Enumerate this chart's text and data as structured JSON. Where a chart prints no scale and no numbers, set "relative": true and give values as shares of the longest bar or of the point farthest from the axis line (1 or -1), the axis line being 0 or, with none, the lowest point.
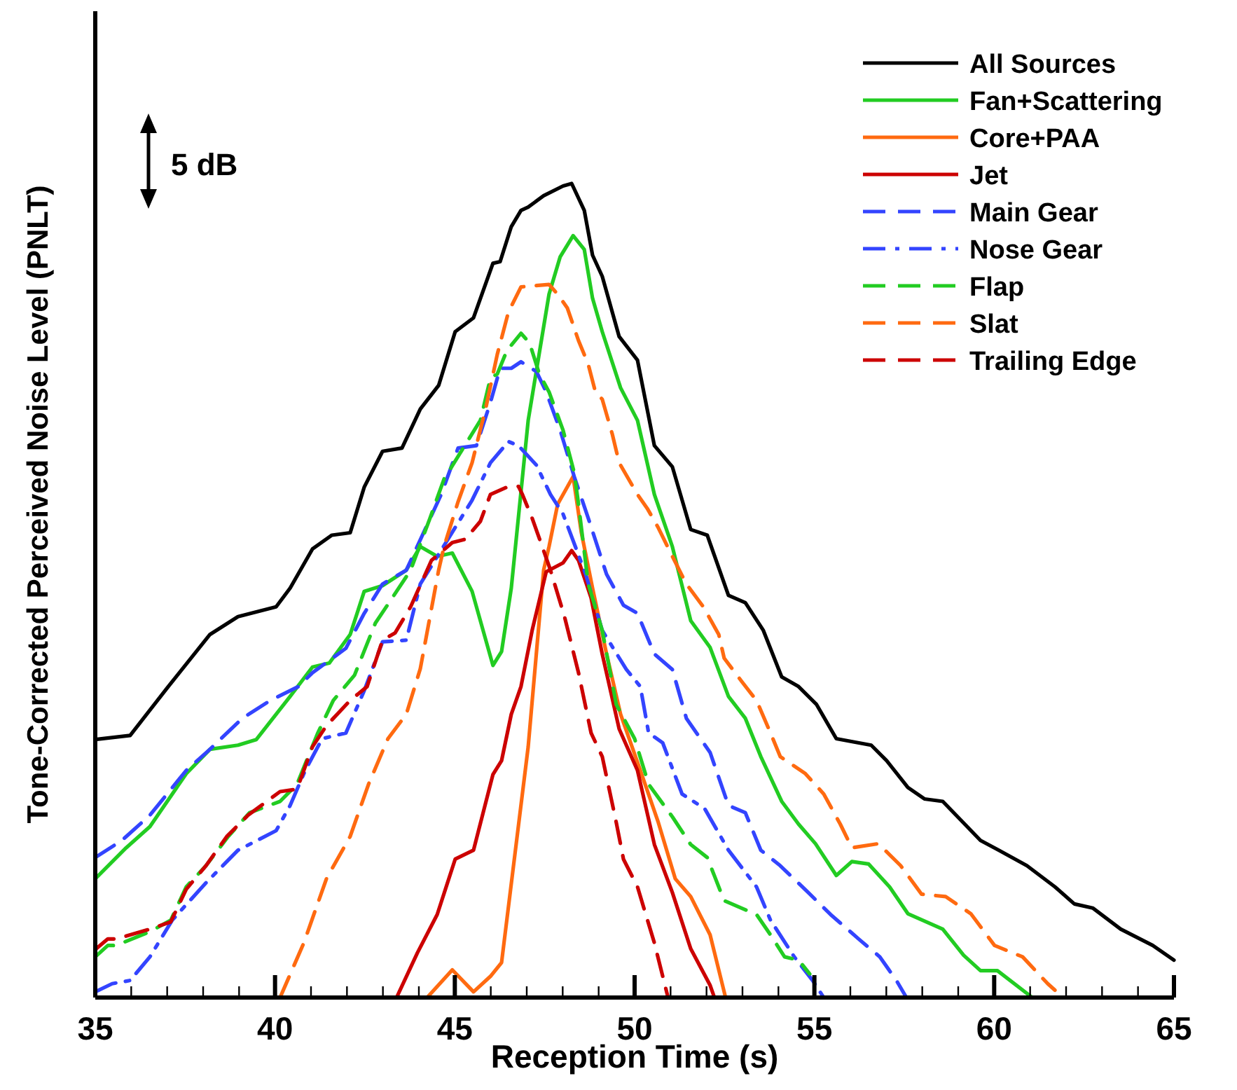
{
  "chart_data": {
    "type": "line",
    "relative": true,
    "xlabel": "Reception Time (s)",
    "ylabel": "Tone-Corrected Perceived Noise Level (PNLT)",
    "legend": "top right",
    "annotations": [
      "5 dB"
    ],
    "xlim": [
      35,
      65
    ],
    "xticks": [
      35,
      {
        "value": 36,
        "label": null
      },
      {
        "value": 37,
        "label": null
      },
      {
        "value": 38,
        "label": null
      },
      {
        "value": 39,
        "label": null
      },
      40,
      {
        "value": 41,
        "label": null
      },
      {
        "value": 42,
        "label": null
      },
      {
        "value": 43,
        "label": null
      },
      {
        "value": 44,
        "label": null
      },
      45,
      {
        "value": 46,
        "label": null
      },
      {
        "value": 47,
        "label": null
      },
      {
        "value": 48,
        "label": null
      },
      {
        "value": 49,
        "label": null
      },
      50,
      {
        "value": 51,
        "label": null
      },
      {
        "value": 52,
        "label": null
      },
      {
        "value": 53,
        "label": null
      },
      {
        "value": 54,
        "label": null
      },
      55,
      {
        "value": 56,
        "label": null
      },
      {
        "value": 57,
        "label": null
      },
      {
        "value": 58,
        "label": null
      },
      {
        "value": 59,
        "label": null
      },
      60,
      {
        "value": 61,
        "label": null
      },
      {
        "value": 62,
        "label": null
      },
      {
        "value": 63,
        "label": null
      },
      {
        "value": 64,
        "label": null
      },
      65
    ],
    "series": [
      {
        "name": "All Sources",
        "color": "#000000",
        "line_style": "solid",
        "x": [
          35,
          35.97,
          37.03,
          38.19,
          38.97,
          40.03,
          40.42,
          41.04,
          41.58,
          42.09,
          42.48,
          42.99,
          43.53,
          44.04,
          44.55,
          45.01,
          45.52,
          46.06,
          46.26,
          46.57,
          46.84,
          47.04,
          47.47,
          48.01,
          48.25,
          48.6,
          48.83,
          49.1,
          49.57,
          50.08,
          50.55,
          51.05,
          51.56,
          52.02,
          52.61,
          53.08,
          53.58,
          54.09,
          54.56,
          55.06,
          55.61,
          56.58,
          57.01,
          57.6,
          58.06,
          58.57,
          59.62,
          60.13,
          60.91,
          61.69,
          62.23,
          62.74,
          63.52,
          64.41,
          65
        ],
        "values": [
          0.317,
          0.322,
          0.382,
          0.446,
          0.468,
          0.48,
          0.503,
          0.551,
          0.568,
          0.571,
          0.627,
          0.671,
          0.675,
          0.723,
          0.752,
          0.818,
          0.835,
          0.902,
          0.904,
          0.947,
          0.967,
          0.971,
          0.985,
          0.997,
          1,
          0.967,
          0.912,
          0.886,
          0.812,
          0.783,
          0.678,
          0.652,
          0.575,
          0.568,
          0.494,
          0.485,
          0.451,
          0.394,
          0.382,
          0.36,
          0.318,
          0.31,
          0.291,
          0.258,
          0.244,
          0.241,
          0.193,
          0.181,
          0.162,
          0.136,
          0.115,
          0.11,
          0.084,
          0.064,
          0.046
        ]
      },
      {
        "name": "Fan+Scattering",
        "color": "#22cc22",
        "line_style": "solid",
        "x": [
          35,
          35.86,
          36.52,
          37.53,
          38.19,
          38.97,
          39.48,
          40.42,
          41.04,
          41.51,
          42.09,
          42.48,
          42.99,
          43.65,
          44.04,
          44.51,
          44.93,
          45.48,
          46.06,
          46.3,
          46.57,
          47.04,
          47.62,
          47.93,
          48.29,
          48.6,
          48.83,
          49.1,
          49.61,
          50.08,
          50.55,
          51.05,
          51.56,
          52.1,
          52.61,
          53.08,
          53.51,
          54.09,
          54.56,
          55.03,
          55.61,
          56.04,
          56.51,
          57.09,
          57.6,
          58.57,
          59.15,
          59.62,
          60.09,
          61.06
        ],
        "values": [
          0.146,
          0.184,
          0.21,
          0.275,
          0.305,
          0.31,
          0.317,
          0.37,
          0.406,
          0.411,
          0.446,
          0.499,
          0.506,
          0.525,
          0.554,
          0.542,
          0.546,
          0.499,
          0.408,
          0.425,
          0.503,
          0.709,
          0.864,
          0.91,
          0.936,
          0.919,
          0.859,
          0.818,
          0.749,
          0.709,
          0.618,
          0.554,
          0.463,
          0.43,
          0.37,
          0.343,
          0.296,
          0.241,
          0.213,
          0.189,
          0.15,
          0.167,
          0.164,
          0.136,
          0.103,
          0.084,
          0.052,
          0.033,
          0.033,
          0
        ]
      },
      {
        "name": "Core+PAA",
        "color": "#ff6a10",
        "line_style": "solid",
        "x": [
          44.23,
          44.93,
          45.52,
          45.99,
          46.3,
          47.04,
          47.47,
          47.62,
          47.86,
          48.29,
          48.52,
          48.83,
          49.22,
          49.61,
          50.16,
          50.66,
          51.13,
          51.56,
          52.1,
          52.53
        ],
        "values": [
          0,
          0.034,
          0.007,
          0.026,
          0.043,
          0.308,
          0.525,
          0.554,
          0.606,
          0.64,
          0.571,
          0.503,
          0.422,
          0.348,
          0.279,
          0.215,
          0.146,
          0.124,
          0.077,
          0
        ]
      },
      {
        "name": "Jet",
        "color": "#cc0000",
        "line_style": "solid",
        "x": [
          43.38,
          43.96,
          44.51,
          45.01,
          45.52,
          46.06,
          46.3,
          46.57,
          46.84,
          47.15,
          47.54,
          48.01,
          48.25,
          48.44,
          48.79,
          49.1,
          49.57,
          50.08,
          50.55,
          51.05,
          51.56,
          52.1,
          52.22
        ],
        "values": [
          0,
          0.055,
          0.102,
          0.17,
          0.181,
          0.274,
          0.291,
          0.348,
          0.382,
          0.451,
          0.523,
          0.534,
          0.549,
          0.537,
          0.491,
          0.422,
          0.33,
          0.279,
          0.188,
          0.129,
          0.06,
          0.015,
          0
        ]
      },
      {
        "name": "Main Gear",
        "color": "#3344ff",
        "line_style": "dashed",
        "x": [
          35,
          35.74,
          36.52,
          37.53,
          38.19,
          39.09,
          39.87,
          40.65,
          41.04,
          41.97,
          42.48,
          42.99,
          43.65,
          44.62,
          45.09,
          45.6,
          45.99,
          46.26,
          46.57,
          46.84,
          47.27,
          47.54,
          47.93,
          48.32,
          48.71,
          49.22,
          49.69,
          50.08,
          50.55,
          51.05,
          51.44,
          52.1,
          52.61,
          53.08,
          53.51,
          54.05,
          54.83,
          55.45,
          56.23,
          56.82,
          57.28,
          57.56
        ],
        "values": [
          0.172,
          0.193,
          0.224,
          0.279,
          0.305,
          0.343,
          0.365,
          0.382,
          0.399,
          0.429,
          0.472,
          0.508,
          0.525,
          0.618,
          0.675,
          0.678,
          0.731,
          0.773,
          0.773,
          0.781,
          0.769,
          0.744,
          0.697,
          0.64,
          0.589,
          0.52,
          0.482,
          0.472,
          0.422,
          0.403,
          0.343,
          0.301,
          0.236,
          0.227,
          0.181,
          0.162,
          0.129,
          0.102,
          0.072,
          0.05,
          0.021,
          0
        ]
      },
      {
        "name": "Nose Gear",
        "color": "#3344ff",
        "line_style": "dashdot",
        "x": [
          35,
          35.47,
          35.97,
          36.52,
          37.14,
          38.08,
          38.97,
          40.03,
          40.42,
          40.84,
          41.31,
          41.97,
          42.48,
          42.99,
          43.65,
          44.04,
          45.48,
          45.99,
          46.49,
          46.77,
          47.27,
          47.66,
          48.01,
          48.25,
          48.64,
          49.1,
          49.77,
          50.16,
          50.39,
          50.78,
          51.32,
          51.95,
          52.61,
          53.39,
          53.78,
          54.44,
          54.95,
          55.26
        ],
        "values": [
          0.007,
          0.017,
          0.021,
          0.05,
          0.095,
          0.141,
          0.181,
          0.205,
          0.236,
          0.279,
          0.318,
          0.325,
          0.377,
          0.437,
          0.439,
          0.508,
          0.611,
          0.657,
          0.683,
          0.678,
          0.654,
          0.618,
          0.594,
          0.566,
          0.52,
          0.451,
          0.403,
          0.382,
          0.325,
          0.313,
          0.25,
          0.232,
          0.181,
          0.136,
          0.095,
          0.05,
          0.021,
          0
        ]
      },
      {
        "name": "Flap",
        "color": "#22cc22",
        "line_style": "dashed",
        "x": [
          35,
          35.35,
          35.58,
          36.52,
          37.1,
          37.53,
          38.08,
          38.7,
          39.29,
          40.14,
          40.61,
          41.19,
          41.62,
          42.21,
          42.79,
          43.26,
          43.77,
          44.31,
          44.7,
          45.71,
          45.99,
          46.18,
          46.45,
          46.84,
          47.08,
          47.35,
          47.62,
          48.01,
          48.32,
          48.44,
          48.71,
          49.1,
          49.49,
          50,
          50.39,
          51.05,
          51.56,
          52.02,
          52.49,
          53.39,
          53.78,
          54.17,
          54.56,
          54.87
        ],
        "values": [
          0.05,
          0.064,
          0.064,
          0.081,
          0.095,
          0.136,
          0.162,
          0.198,
          0.227,
          0.241,
          0.262,
          0.325,
          0.365,
          0.396,
          0.46,
          0.491,
          0.525,
          0.589,
          0.637,
          0.709,
          0.761,
          0.766,
          0.795,
          0.816,
          0.804,
          0.766,
          0.744,
          0.697,
          0.645,
          0.606,
          0.508,
          0.451,
          0.36,
          0.318,
          0.262,
          0.222,
          0.188,
          0.172,
          0.119,
          0.102,
          0.077,
          0.05,
          0.046,
          0.029
        ]
      },
      {
        "name": "Slat",
        "color": "#ff6a10",
        "line_style": "dashed",
        "x": [
          40.14,
          40.8,
          41.43,
          42.09,
          42.6,
          43.14,
          43.65,
          44.04,
          44.55,
          44.7,
          45.09,
          45.48,
          45.87,
          46.18,
          46.49,
          46.84,
          47.62,
          47.86,
          48.13,
          48.44,
          48.71,
          48.91,
          49.1,
          49.38,
          49.57,
          50.08,
          50.35,
          50.66,
          50.97,
          51.44,
          51.91,
          52.34,
          52.49,
          53,
          53.39,
          53.78,
          54.05,
          54.75,
          55.26,
          55.72,
          56.04,
          56.78,
          57.4,
          57.98,
          58.65,
          59.35,
          60.01,
          60.79,
          61.49,
          61.69
        ],
        "values": [
          0,
          0.067,
          0.146,
          0.198,
          0.262,
          0.318,
          0.348,
          0.404,
          0.525,
          0.554,
          0.609,
          0.657,
          0.726,
          0.79,
          0.842,
          0.873,
          0.876,
          0.864,
          0.847,
          0.807,
          0.778,
          0.744,
          0.735,
          0.692,
          0.657,
          0.618,
          0.601,
          0.577,
          0.549,
          0.508,
          0.48,
          0.446,
          0.417,
          0.387,
          0.365,
          0.325,
          0.296,
          0.275,
          0.25,
          0.213,
          0.184,
          0.189,
          0.162,
          0.127,
          0.124,
          0.103,
          0.064,
          0.05,
          0.017,
          0.009
        ]
      },
      {
        "name": "Trailing Edge",
        "color": "#cc0000",
        "line_style": "dashed",
        "x": [
          35,
          35.35,
          35.58,
          36.52,
          37.1,
          37.53,
          38.08,
          38.66,
          39.25,
          40.14,
          40.61,
          41.04,
          41.43,
          42.09,
          42.56,
          42.99,
          43.34,
          43.77,
          44.35,
          44.93,
          45.29,
          45.71,
          45.99,
          46.45,
          46.77,
          46.88,
          47.15,
          47.43,
          47.66,
          48.05,
          48.44,
          48.79,
          49.1,
          49.49,
          49.69,
          50.08,
          50.55,
          50.93
        ],
        "values": [
          0.059,
          0.072,
          0.072,
          0.084,
          0.093,
          0.133,
          0.162,
          0.198,
          0.224,
          0.253,
          0.256,
          0.308,
          0.334,
          0.365,
          0.382,
          0.439,
          0.448,
          0.48,
          0.537,
          0.559,
          0.563,
          0.585,
          0.618,
          0.627,
          0.628,
          0.618,
          0.589,
          0.554,
          0.525,
          0.468,
          0.399,
          0.325,
          0.296,
          0.215,
          0.17,
          0.136,
          0.067,
          0
        ]
      }
    ]
  }
}
